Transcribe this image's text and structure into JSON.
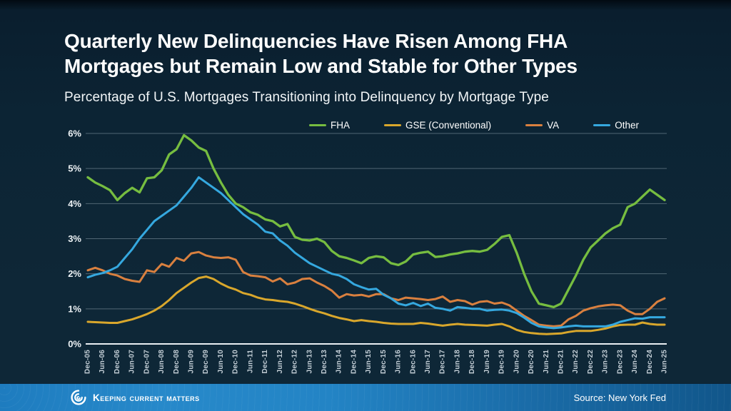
{
  "header": {
    "title_line1": "Quarterly New Delinquencies Have Risen Among FHA",
    "title_line2": "Mortgages but Remain Low and Stable for Other Types",
    "subtitle": "Percentage of U.S. Mortgages Transitioning into Delinquency by Mortgage Type"
  },
  "chart_data": {
    "type": "line",
    "title": "Quarterly New Delinquencies Have Risen Among FHA Mortgages but Remain Low and Stable for Other Types",
    "subtitle": "Percentage of U.S. Mortgages Transitioning into Delinquency by Mortgage Type",
    "xlabel": "",
    "ylabel": "",
    "ylim": [
      0,
      6
    ],
    "y_ticks": [
      "0%",
      "1%",
      "2%",
      "3%",
      "4%",
      "5%",
      "6%"
    ],
    "grid": "horizontal",
    "legend_position": "top",
    "x_resolution": "quarterly",
    "tick_every_n_points": 2,
    "x_tick_labels": [
      "Dec-05",
      "Jun-06",
      "Dec-06",
      "Jun-07",
      "Dec-07",
      "Jun-08",
      "Dec-08",
      "Jun-09",
      "Dec-09",
      "Jun-10",
      "Dec-10",
      "Jun-11",
      "Dec-11",
      "Jun-12",
      "Dec-12",
      "Jun-13",
      "Dec-13",
      "Jun-14",
      "Dec-14",
      "Jun-15",
      "Dec-15",
      "Jun-16",
      "Dec-16",
      "Jun-17",
      "Dec-17",
      "Jun-18",
      "Dec-18",
      "Jun-19",
      "Dec-19",
      "Jun-20",
      "Dec-20",
      "Jun-21",
      "Dec-21",
      "Jun-22",
      "Dec-22",
      "Jun-23",
      "Dec-23",
      "Jun-24",
      "Dec-24",
      "Jun-25"
    ],
    "series": [
      {
        "name": "FHA",
        "color": "#76bd40",
        "values": [
          4.75,
          4.6,
          4.5,
          4.38,
          4.1,
          4.3,
          4.45,
          4.32,
          4.72,
          4.75,
          4.95,
          5.4,
          5.55,
          5.95,
          5.8,
          5.6,
          5.5,
          5.0,
          4.6,
          4.25,
          4.0,
          3.9,
          3.75,
          3.68,
          3.55,
          3.5,
          3.35,
          3.42,
          3.05,
          2.97,
          2.95,
          3.0,
          2.9,
          2.65,
          2.5,
          2.45,
          2.38,
          2.3,
          2.45,
          2.5,
          2.47,
          2.3,
          2.25,
          2.35,
          2.55,
          2.6,
          2.63,
          2.48,
          2.5,
          2.55,
          2.58,
          2.63,
          2.65,
          2.63,
          2.68,
          2.85,
          3.05,
          3.1,
          2.6,
          2.0,
          1.5,
          1.15,
          1.1,
          1.05,
          1.15,
          1.55,
          1.95,
          2.4,
          2.75,
          2.95,
          3.15,
          3.3,
          3.4,
          3.9,
          4.0,
          4.2,
          4.4,
          4.25,
          4.1
        ]
      },
      {
        "name": "GSE (Conventional)",
        "color": "#d9a72c",
        "values": [
          0.63,
          0.62,
          0.61,
          0.6,
          0.6,
          0.65,
          0.7,
          0.77,
          0.85,
          0.95,
          1.08,
          1.25,
          1.45,
          1.6,
          1.75,
          1.88,
          1.92,
          1.85,
          1.72,
          1.62,
          1.55,
          1.45,
          1.4,
          1.32,
          1.27,
          1.25,
          1.22,
          1.2,
          1.15,
          1.08,
          1.0,
          0.93,
          0.87,
          0.8,
          0.74,
          0.7,
          0.65,
          0.68,
          0.65,
          0.63,
          0.6,
          0.58,
          0.57,
          0.57,
          0.57,
          0.6,
          0.58,
          0.55,
          0.52,
          0.55,
          0.57,
          0.55,
          0.54,
          0.53,
          0.52,
          0.55,
          0.57,
          0.5,
          0.4,
          0.34,
          0.31,
          0.29,
          0.28,
          0.29,
          0.3,
          0.34,
          0.37,
          0.37,
          0.37,
          0.4,
          0.44,
          0.5,
          0.54,
          0.55,
          0.55,
          0.61,
          0.57,
          0.55,
          0.55
        ]
      },
      {
        "name": "VA",
        "color": "#d9803f",
        "values": [
          2.1,
          2.17,
          2.1,
          2.0,
          1.95,
          1.85,
          1.8,
          1.77,
          2.1,
          2.05,
          2.28,
          2.2,
          2.45,
          2.37,
          2.58,
          2.62,
          2.52,
          2.47,
          2.45,
          2.47,
          2.4,
          2.05,
          1.95,
          1.93,
          1.9,
          1.78,
          1.87,
          1.7,
          1.75,
          1.85,
          1.87,
          1.75,
          1.65,
          1.52,
          1.32,
          1.42,
          1.38,
          1.4,
          1.35,
          1.42,
          1.42,
          1.3,
          1.25,
          1.32,
          1.3,
          1.28,
          1.25,
          1.28,
          1.35,
          1.2,
          1.25,
          1.22,
          1.12,
          1.2,
          1.22,
          1.15,
          1.18,
          1.1,
          0.95,
          0.8,
          0.68,
          0.55,
          0.52,
          0.5,
          0.52,
          0.7,
          0.8,
          0.95,
          1.02,
          1.07,
          1.1,
          1.12,
          1.1,
          0.95,
          0.85,
          0.85,
          1.0,
          1.2,
          1.3
        ]
      },
      {
        "name": "Other",
        "color": "#35a8df",
        "values": [
          1.9,
          1.97,
          2.02,
          2.1,
          2.2,
          2.45,
          2.7,
          3.0,
          3.25,
          3.5,
          3.65,
          3.8,
          3.95,
          4.2,
          4.45,
          4.75,
          4.6,
          4.45,
          4.3,
          4.1,
          3.9,
          3.7,
          3.55,
          3.4,
          3.2,
          3.15,
          2.95,
          2.8,
          2.6,
          2.45,
          2.3,
          2.2,
          2.1,
          2.0,
          1.95,
          1.85,
          1.7,
          1.62,
          1.55,
          1.57,
          1.4,
          1.3,
          1.15,
          1.1,
          1.17,
          1.08,
          1.15,
          1.03,
          1.0,
          0.95,
          1.05,
          1.03,
          1.0,
          1.0,
          0.95,
          0.97,
          0.98,
          0.95,
          0.88,
          0.75,
          0.6,
          0.5,
          0.47,
          0.45,
          0.47,
          0.5,
          0.52,
          0.5,
          0.5,
          0.5,
          0.5,
          0.55,
          0.63,
          0.68,
          0.73,
          0.72,
          0.76,
          0.76,
          0.76
        ]
      }
    ]
  },
  "colors": {
    "background": "#0e2737",
    "footer_blue": "#2384c5",
    "gridline": "#c1cfd9",
    "text": "#ffffff"
  },
  "footer": {
    "brand": "Keeping Current Matters",
    "source": "Source: New York Fed"
  }
}
